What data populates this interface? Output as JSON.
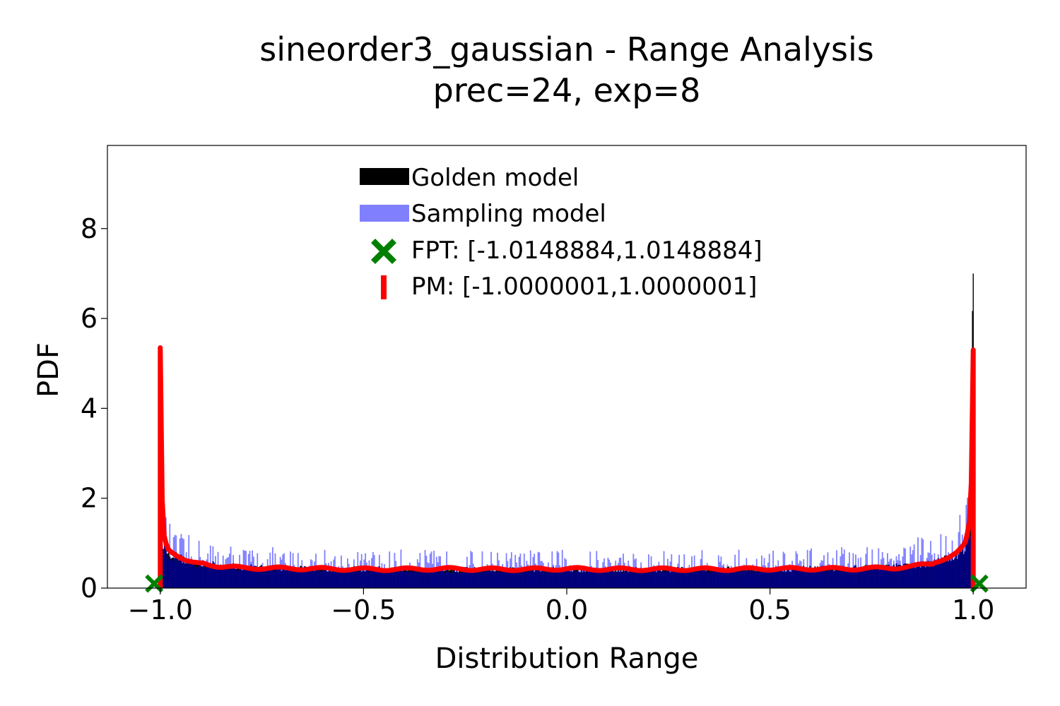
{
  "chart_data": {
    "type": "bar",
    "title": "sineorder3_gaussian - Range Analysis",
    "subtitle": "prec=24, exp=8",
    "xlabel": "Distribution Range",
    "ylabel": "PDF",
    "xlim": [
      -1.13,
      1.13
    ],
    "ylim": [
      0,
      9.85
    ],
    "xticks": [
      -1.0,
      -0.5,
      0.0,
      0.5,
      1.0
    ],
    "xtick_labels": [
      "−1.0",
      "−0.5",
      "0.0",
      "0.5",
      "1.0"
    ],
    "yticks": [
      0,
      2,
      4,
      6,
      8
    ],
    "ytick_labels": [
      "0",
      "2",
      "4",
      "6",
      "8"
    ],
    "grid": false,
    "legend_placement": "top-center",
    "colors": {
      "golden": "#000000",
      "sampling": "#8080ff",
      "overlap": "#000080",
      "fpt": "#008000",
      "pm": "#ff0000"
    },
    "series": [
      {
        "name": "Golden model",
        "kind": "histogram",
        "x": [
          -1.0,
          -0.99,
          -0.98,
          -0.96,
          -0.94,
          -0.92,
          -0.9,
          -0.85,
          -0.8,
          -0.7,
          -0.6,
          -0.5,
          -0.4,
          -0.3,
          -0.2,
          -0.1,
          0.0,
          0.1,
          0.2,
          0.3,
          0.4,
          0.5,
          0.6,
          0.7,
          0.8,
          0.85,
          0.9,
          0.92,
          0.94,
          0.96,
          0.98,
          0.99,
          1.0
        ],
        "values": [
          1.2,
          0.95,
          0.8,
          0.7,
          0.62,
          0.58,
          0.55,
          0.5,
          0.47,
          0.44,
          0.43,
          0.42,
          0.42,
          0.41,
          0.41,
          0.41,
          0.41,
          0.41,
          0.41,
          0.41,
          0.42,
          0.42,
          0.43,
          0.44,
          0.47,
          0.5,
          0.55,
          0.6,
          0.66,
          0.75,
          0.9,
          1.2,
          7.0
        ]
      },
      {
        "name": "Sampling model",
        "kind": "histogram",
        "x": [
          -1.0,
          -0.99,
          -0.98,
          -0.96,
          -0.94,
          -0.92,
          -0.9,
          -0.85,
          -0.8,
          -0.7,
          -0.6,
          -0.5,
          -0.4,
          -0.3,
          -0.2,
          -0.1,
          0.0,
          0.1,
          0.2,
          0.3,
          0.4,
          0.5,
          0.6,
          0.7,
          0.8,
          0.85,
          0.9,
          0.92,
          0.94,
          0.96,
          0.98,
          0.99,
          1.0
        ],
        "values": [
          2.0,
          1.3,
          1.0,
          0.85,
          0.8,
          0.78,
          0.75,
          0.7,
          0.65,
          0.6,
          0.6,
          0.58,
          0.58,
          0.57,
          0.57,
          0.57,
          0.58,
          0.57,
          0.57,
          0.57,
          0.58,
          0.58,
          0.6,
          0.62,
          0.7,
          0.75,
          0.85,
          0.9,
          1.0,
          1.1,
          1.3,
          1.7,
          2.0
        ]
      },
      {
        "name": "PM: [-1.0000001,1.0000001]",
        "kind": "line",
        "x": [
          -1.0,
          -0.995,
          -0.99,
          -0.98,
          -0.96,
          -0.94,
          -0.92,
          -0.9,
          -0.85,
          -0.8,
          -0.7,
          -0.6,
          -0.5,
          -0.4,
          -0.3,
          -0.2,
          -0.1,
          0.0,
          0.1,
          0.2,
          0.3,
          0.4,
          0.5,
          0.6,
          0.7,
          0.8,
          0.85,
          0.9,
          0.92,
          0.94,
          0.96,
          0.98,
          0.99,
          0.995,
          1.0
        ],
        "values": [
          5.35,
          1.8,
          1.1,
          0.85,
          0.72,
          0.62,
          0.58,
          0.56,
          0.48,
          0.45,
          0.44,
          0.43,
          0.42,
          0.42,
          0.43,
          0.42,
          0.42,
          0.43,
          0.42,
          0.42,
          0.42,
          0.42,
          0.43,
          0.43,
          0.43,
          0.45,
          0.48,
          0.55,
          0.6,
          0.68,
          0.8,
          1.0,
          1.4,
          2.2,
          5.3
        ]
      },
      {
        "name": "FPT: [-1.0148884,1.0148884]",
        "kind": "markers",
        "x": [
          -1.0148884,
          1.0148884
        ],
        "values": [
          0.1,
          0.1
        ]
      }
    ],
    "legend": [
      {
        "label": "Golden model"
      },
      {
        "label": "Sampling model"
      },
      {
        "label": "FPT: [-1.0148884,1.0148884]"
      },
      {
        "label": "PM: [-1.0000001,1.0000001]"
      }
    ]
  }
}
